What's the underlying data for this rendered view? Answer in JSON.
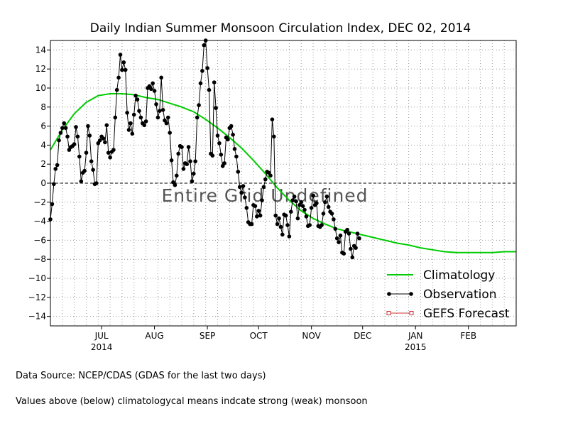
{
  "chart_data": {
    "type": "line",
    "title": "Daily Indian Summer Monsoon Circulation Index, DEC 02, 2014",
    "xlabel": "",
    "ylabel": "",
    "xlim": [
      "2014-06-01",
      "2015-03-01"
    ],
    "ylim": [
      -15,
      15
    ],
    "yticks": [
      -14,
      -12,
      -10,
      -8,
      -6,
      -4,
      -2,
      0,
      2,
      4,
      6,
      8,
      10,
      12,
      14
    ],
    "xticks": [
      {
        "date": "2014-07-01",
        "label": "JUL",
        "year": "2014"
      },
      {
        "date": "2014-08-01",
        "label": "AUG",
        "year": ""
      },
      {
        "date": "2014-09-01",
        "label": "SEP",
        "year": ""
      },
      {
        "date": "2014-10-01",
        "label": "OCT",
        "year": ""
      },
      {
        "date": "2014-11-01",
        "label": "NOV",
        "year": ""
      },
      {
        "date": "2014-12-01",
        "label": "DEC",
        "year": ""
      },
      {
        "date": "2015-01-01",
        "label": "JAN",
        "year": "2015"
      },
      {
        "date": "2015-02-01",
        "label": "FEB",
        "year": ""
      }
    ],
    "grid": true,
    "legend_position": "bottom-right",
    "watermark": "Entire Grid Undefined",
    "zero_line": 0,
    "series": [
      {
        "name": "Climatology",
        "color": "#00cc00",
        "marker": "none",
        "points": [
          [
            "2014-06-01",
            3.5
          ],
          [
            "2014-06-08",
            5.6
          ],
          [
            "2014-06-15",
            7.3
          ],
          [
            "2014-06-22",
            8.5
          ],
          [
            "2014-06-29",
            9.2
          ],
          [
            "2014-07-06",
            9.4
          ],
          [
            "2014-07-13",
            9.4
          ],
          [
            "2014-07-20",
            9.3
          ],
          [
            "2014-07-27",
            9.0
          ],
          [
            "2014-08-03",
            8.8
          ],
          [
            "2014-08-10",
            8.4
          ],
          [
            "2014-08-17",
            8.0
          ],
          [
            "2014-08-24",
            7.5
          ],
          [
            "2014-08-31",
            6.7
          ],
          [
            "2014-09-07",
            5.8
          ],
          [
            "2014-09-14",
            4.8
          ],
          [
            "2014-09-21",
            3.7
          ],
          [
            "2014-09-28",
            2.4
          ],
          [
            "2014-10-05",
            1.0
          ],
          [
            "2014-10-12",
            -0.5
          ],
          [
            "2014-10-19",
            -1.8
          ],
          [
            "2014-10-26",
            -2.9
          ],
          [
            "2014-11-02",
            -3.7
          ],
          [
            "2014-11-09",
            -4.3
          ],
          [
            "2014-11-16",
            -4.8
          ],
          [
            "2014-11-23",
            -5.1
          ],
          [
            "2014-11-30",
            -5.4
          ],
          [
            "2014-12-07",
            -5.7
          ],
          [
            "2014-12-14",
            -6.0
          ],
          [
            "2014-12-21",
            -6.3
          ],
          [
            "2014-12-28",
            -6.5
          ],
          [
            "2015-01-04",
            -6.8
          ],
          [
            "2015-01-11",
            -7.0
          ],
          [
            "2015-01-18",
            -7.2
          ],
          [
            "2015-01-25",
            -7.3
          ],
          [
            "2015-02-01",
            -7.3
          ],
          [
            "2015-02-08",
            -7.3
          ],
          [
            "2015-02-15",
            -7.3
          ],
          [
            "2015-02-22",
            -7.2
          ],
          [
            "2015-03-01",
            -7.2
          ]
        ]
      },
      {
        "name": "Observation",
        "color": "#000000",
        "marker": "circle",
        "points": [
          [
            "2014-06-01",
            -3.8
          ],
          [
            "2014-06-02",
            -2.2
          ],
          [
            "2014-06-03",
            -0.1
          ],
          [
            "2014-06-04",
            1.5
          ],
          [
            "2014-06-05",
            1.9
          ],
          [
            "2014-06-06",
            4.5
          ],
          [
            "2014-06-07",
            5.3
          ],
          [
            "2014-06-08",
            5.8
          ],
          [
            "2014-06-09",
            6.3
          ],
          [
            "2014-06-10",
            5.8
          ],
          [
            "2014-06-11",
            4.9
          ],
          [
            "2014-06-12",
            3.5
          ],
          [
            "2014-06-13",
            3.8
          ],
          [
            "2014-06-14",
            3.9
          ],
          [
            "2014-06-15",
            4.1
          ],
          [
            "2014-06-16",
            5.9
          ],
          [
            "2014-06-17",
            4.9
          ],
          [
            "2014-06-18",
            2.8
          ],
          [
            "2014-06-19",
            0.2
          ],
          [
            "2014-06-20",
            1.1
          ],
          [
            "2014-06-21",
            1.3
          ],
          [
            "2014-06-22",
            3.2
          ],
          [
            "2014-06-23",
            6.0
          ],
          [
            "2014-06-24",
            5.0
          ],
          [
            "2014-06-25",
            2.3
          ],
          [
            "2014-06-26",
            1.4
          ],
          [
            "2014-06-27",
            -0.1
          ],
          [
            "2014-06-28",
            0.0
          ],
          [
            "2014-06-29",
            4.2
          ],
          [
            "2014-06-30",
            4.5
          ],
          [
            "2014-07-01",
            4.9
          ],
          [
            "2014-07-02",
            4.7
          ],
          [
            "2014-07-03",
            4.3
          ],
          [
            "2014-07-04",
            6.1
          ],
          [
            "2014-07-05",
            3.2
          ],
          [
            "2014-07-06",
            2.7
          ],
          [
            "2014-07-07",
            3.3
          ],
          [
            "2014-07-08",
            3.5
          ],
          [
            "2014-07-09",
            6.9
          ],
          [
            "2014-07-10",
            9.8
          ],
          [
            "2014-07-11",
            11.1
          ],
          [
            "2014-07-12",
            13.5
          ],
          [
            "2014-07-13",
            11.9
          ],
          [
            "2014-07-14",
            12.7
          ],
          [
            "2014-07-15",
            11.9
          ],
          [
            "2014-07-16",
            7.4
          ],
          [
            "2014-07-17",
            5.6
          ],
          [
            "2014-07-18",
            6.3
          ],
          [
            "2014-07-19",
            5.2
          ],
          [
            "2014-07-20",
            7.2
          ],
          [
            "2014-07-21",
            9.2
          ],
          [
            "2014-07-22",
            8.8
          ],
          [
            "2014-07-23",
            7.6
          ],
          [
            "2014-07-24",
            6.9
          ],
          [
            "2014-07-25",
            6.3
          ],
          [
            "2014-07-26",
            6.1
          ],
          [
            "2014-07-27",
            6.5
          ],
          [
            "2014-07-28",
            10.0
          ],
          [
            "2014-07-29",
            10.2
          ],
          [
            "2014-07-30",
            9.9
          ],
          [
            "2014-07-31",
            10.5
          ],
          [
            "2014-08-01",
            9.7
          ],
          [
            "2014-08-02",
            8.3
          ],
          [
            "2014-08-03",
            6.9
          ],
          [
            "2014-08-04",
            7.6
          ],
          [
            "2014-08-05",
            11.1
          ],
          [
            "2014-08-06",
            7.7
          ],
          [
            "2014-08-07",
            6.6
          ],
          [
            "2014-08-08",
            6.3
          ],
          [
            "2014-08-09",
            6.9
          ],
          [
            "2014-08-10",
            5.3
          ],
          [
            "2014-08-11",
            2.4
          ],
          [
            "2014-08-12",
            0.1
          ],
          [
            "2014-08-13",
            -0.2
          ],
          [
            "2014-08-14",
            0.8
          ],
          [
            "2014-08-15",
            3.1
          ],
          [
            "2014-08-16",
            3.9
          ],
          [
            "2014-08-17",
            3.8
          ],
          [
            "2014-08-18",
            1.5
          ],
          [
            "2014-08-19",
            2.1
          ],
          [
            "2014-08-20",
            2.0
          ],
          [
            "2014-08-21",
            3.8
          ],
          [
            "2014-08-22",
            2.3
          ],
          [
            "2014-08-23",
            0.2
          ],
          [
            "2014-08-24",
            1.0
          ],
          [
            "2014-08-25",
            2.3
          ],
          [
            "2014-08-26",
            6.9
          ],
          [
            "2014-08-27",
            8.2
          ],
          [
            "2014-08-28",
            10.5
          ],
          [
            "2014-08-29",
            11.8
          ],
          [
            "2014-08-30",
            14.5
          ],
          [
            "2014-08-31",
            15.0
          ],
          [
            "2014-09-01",
            12.1
          ],
          [
            "2014-09-02",
            9.8
          ],
          [
            "2014-09-03",
            3.1
          ],
          [
            "2014-09-04",
            2.9
          ],
          [
            "2014-09-05",
            10.6
          ],
          [
            "2014-09-06",
            7.9
          ],
          [
            "2014-09-07",
            5.0
          ],
          [
            "2014-09-08",
            4.2
          ],
          [
            "2014-09-09",
            3.0
          ],
          [
            "2014-09-10",
            1.8
          ],
          [
            "2014-09-11",
            2.1
          ],
          [
            "2014-09-12",
            4.8
          ],
          [
            "2014-09-13",
            4.6
          ],
          [
            "2014-09-14",
            5.8
          ],
          [
            "2014-09-15",
            6.0
          ],
          [
            "2014-09-16",
            5.1
          ],
          [
            "2014-09-17",
            3.6
          ],
          [
            "2014-09-18",
            2.8
          ],
          [
            "2014-09-19",
            1.2
          ],
          [
            "2014-09-20",
            -0.4
          ],
          [
            "2014-09-21",
            -1.0
          ],
          [
            "2014-09-22",
            -0.3
          ],
          [
            "2014-09-23",
            -1.5
          ],
          [
            "2014-09-24",
            -2.6
          ],
          [
            "2014-09-25",
            -4.1
          ],
          [
            "2014-09-26",
            -4.3
          ],
          [
            "2014-09-27",
            -4.3
          ],
          [
            "2014-09-28",
            -2.3
          ],
          [
            "2014-09-29",
            -2.4
          ],
          [
            "2014-09-30",
            -3.5
          ],
          [
            "2014-10-01",
            -2.9
          ],
          [
            "2014-10-02",
            -3.4
          ],
          [
            "2014-10-03",
            -1.8
          ],
          [
            "2014-10-04",
            -0.4
          ],
          [
            "2014-10-05",
            0.4
          ],
          [
            "2014-10-06",
            1.2
          ],
          [
            "2014-10-07",
            1.1
          ],
          [
            "2014-10-08",
            0.8
          ],
          [
            "2014-10-09",
            6.7
          ],
          [
            "2014-10-10",
            4.9
          ],
          [
            "2014-10-11",
            -3.4
          ],
          [
            "2014-10-12",
            -4.3
          ],
          [
            "2014-10-13",
            -3.7
          ],
          [
            "2014-10-14",
            -4.6
          ],
          [
            "2014-10-15",
            -5.4
          ],
          [
            "2014-10-16",
            -3.3
          ],
          [
            "2014-10-17",
            -3.4
          ],
          [
            "2014-10-18",
            -4.4
          ],
          [
            "2014-10-19",
            -5.6
          ],
          [
            "2014-10-20",
            -3.0
          ],
          [
            "2014-10-21",
            -1.8
          ],
          [
            "2014-10-22",
            -1.4
          ],
          [
            "2014-10-23",
            -1.9
          ],
          [
            "2014-10-24",
            -3.7
          ],
          [
            "2014-10-25",
            -2.3
          ],
          [
            "2014-10-26",
            -2.0
          ],
          [
            "2014-10-27",
            -2.4
          ],
          [
            "2014-10-28",
            -2.8
          ],
          [
            "2014-10-29",
            -3.5
          ],
          [
            "2014-10-30",
            -4.5
          ],
          [
            "2014-10-31",
            -4.4
          ],
          [
            "2014-11-01",
            -2.6
          ],
          [
            "2014-11-02",
            -1.3
          ],
          [
            "2014-11-03",
            -2.3
          ],
          [
            "2014-11-04",
            -2.1
          ],
          [
            "2014-11-05",
            -4.5
          ],
          [
            "2014-11-06",
            -4.6
          ],
          [
            "2014-11-07",
            -4.4
          ],
          [
            "2014-11-08",
            -3.2
          ],
          [
            "2014-11-09",
            -2.0
          ],
          [
            "2014-11-10",
            -1.4
          ],
          [
            "2014-11-11",
            -2.5
          ],
          [
            "2014-11-12",
            -3.0
          ],
          [
            "2014-11-13",
            -3.2
          ],
          [
            "2014-11-14",
            -3.8
          ],
          [
            "2014-11-15",
            -4.8
          ],
          [
            "2014-11-16",
            -5.8
          ],
          [
            "2014-11-17",
            -6.2
          ],
          [
            "2014-11-18",
            -5.5
          ],
          [
            "2014-11-19",
            -7.3
          ],
          [
            "2014-11-20",
            -7.4
          ],
          [
            "2014-11-21",
            -5.1
          ],
          [
            "2014-11-22",
            -4.9
          ],
          [
            "2014-11-23",
            -5.3
          ],
          [
            "2014-11-24",
            -6.9
          ],
          [
            "2014-11-25",
            -7.8
          ],
          [
            "2014-11-26",
            -6.6
          ],
          [
            "2014-11-27",
            -6.8
          ],
          [
            "2014-11-28",
            -5.3
          ],
          [
            "2014-11-29",
            -5.8
          ]
        ]
      },
      {
        "name": "GEFS Forecast",
        "color": "#cc3333",
        "marker": "square",
        "points": []
      }
    ]
  },
  "footer": {
    "line1": "Data Source:  NCEP/CDAS (GDAS for the last two days)",
    "line2": "Values above (below) climatologycal means indcate strong (weak) monsoon"
  }
}
